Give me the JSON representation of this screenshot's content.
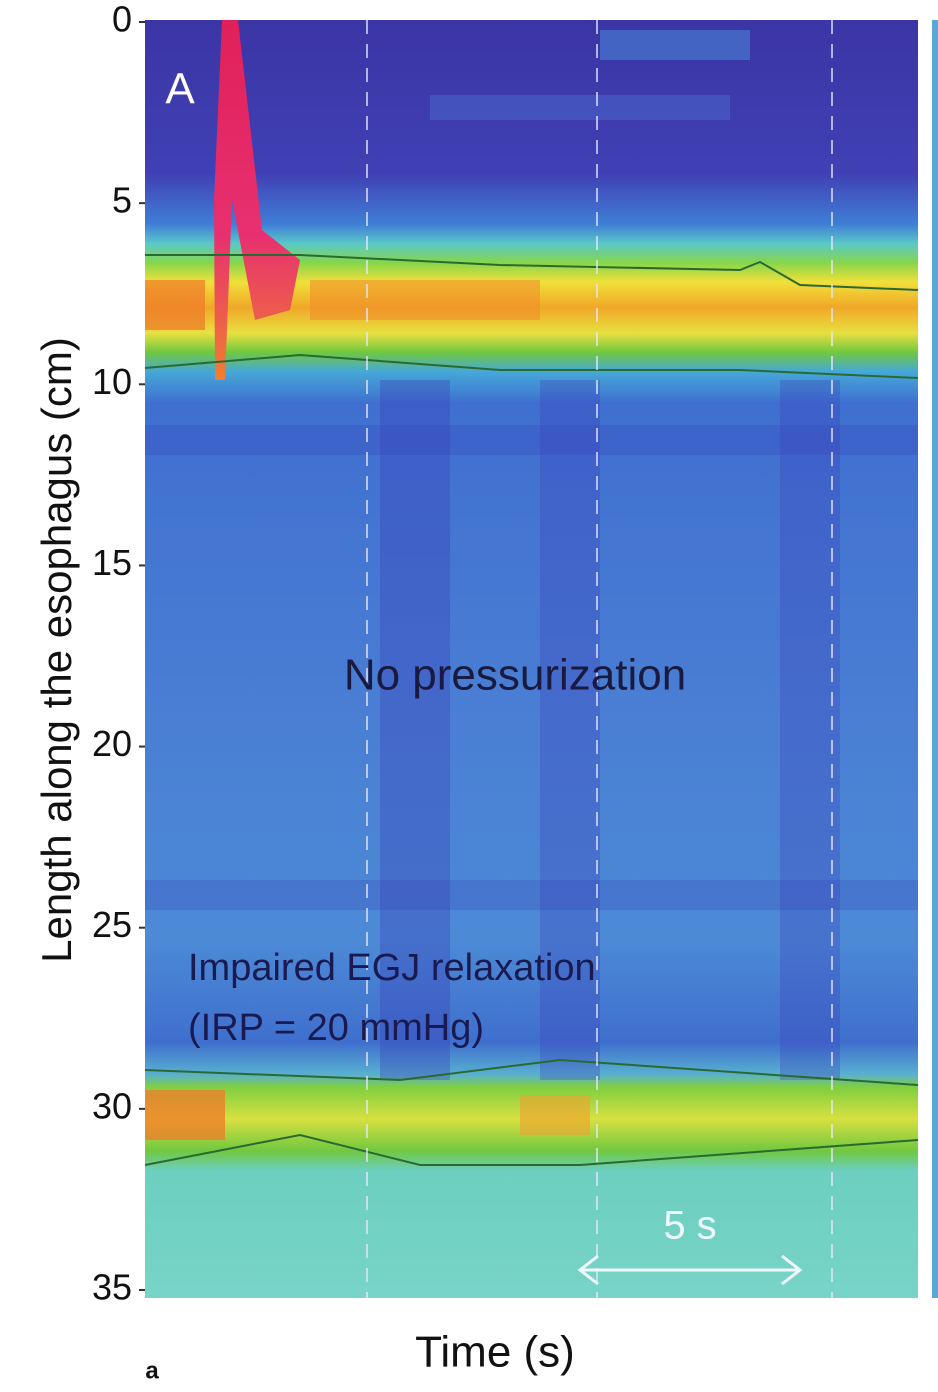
{
  "chart_data": {
    "type": "heatmap",
    "panel_label": "A",
    "ylabel": "Length along the esophagus (cm)",
    "xlabel": "Time (s)",
    "ylim": [
      0,
      35
    ],
    "yticks": [
      0,
      5,
      10,
      15,
      20,
      25,
      30,
      35
    ],
    "annotations": [
      "No pressurization",
      "Impaired EGJ relaxation",
      "(IRP = 20 mmHg)",
      "5 s"
    ],
    "footnote": "a"
  }
}
